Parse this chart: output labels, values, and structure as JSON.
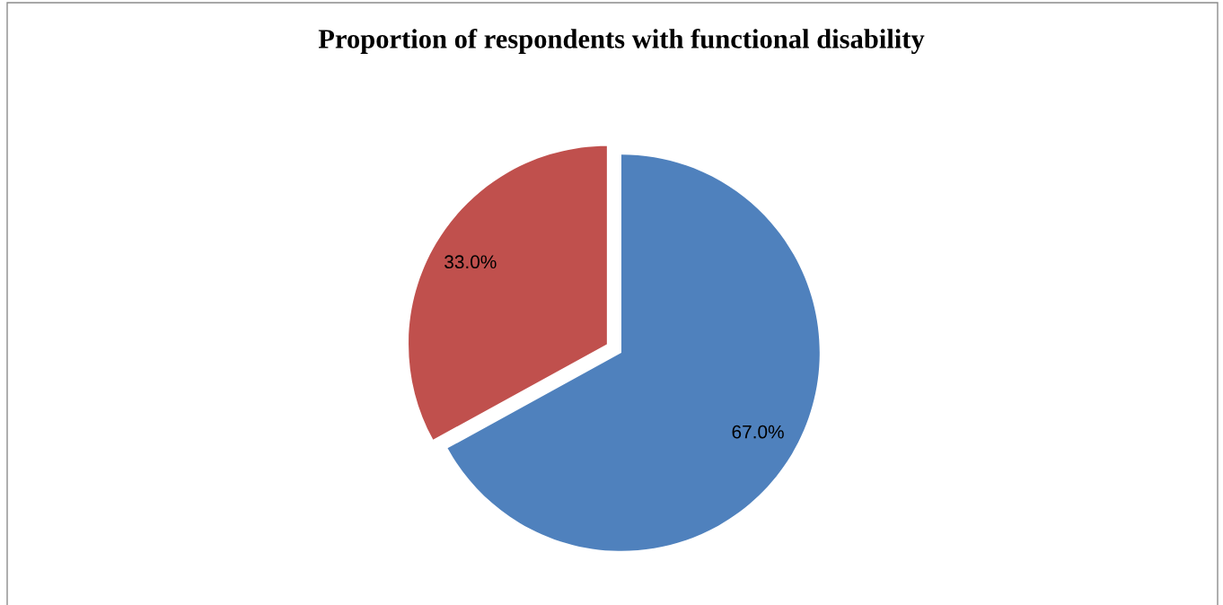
{
  "chart_data": {
    "type": "pie",
    "title": "Proportion of respondents with functional disability",
    "categories": [
      null,
      null
    ],
    "values": [
      67.0,
      33.0
    ],
    "colors": [
      "#4f81bd",
      "#c0504d"
    ],
    "value_labels": [
      "67.0%",
      "33.0%"
    ],
    "legend": false
  }
}
